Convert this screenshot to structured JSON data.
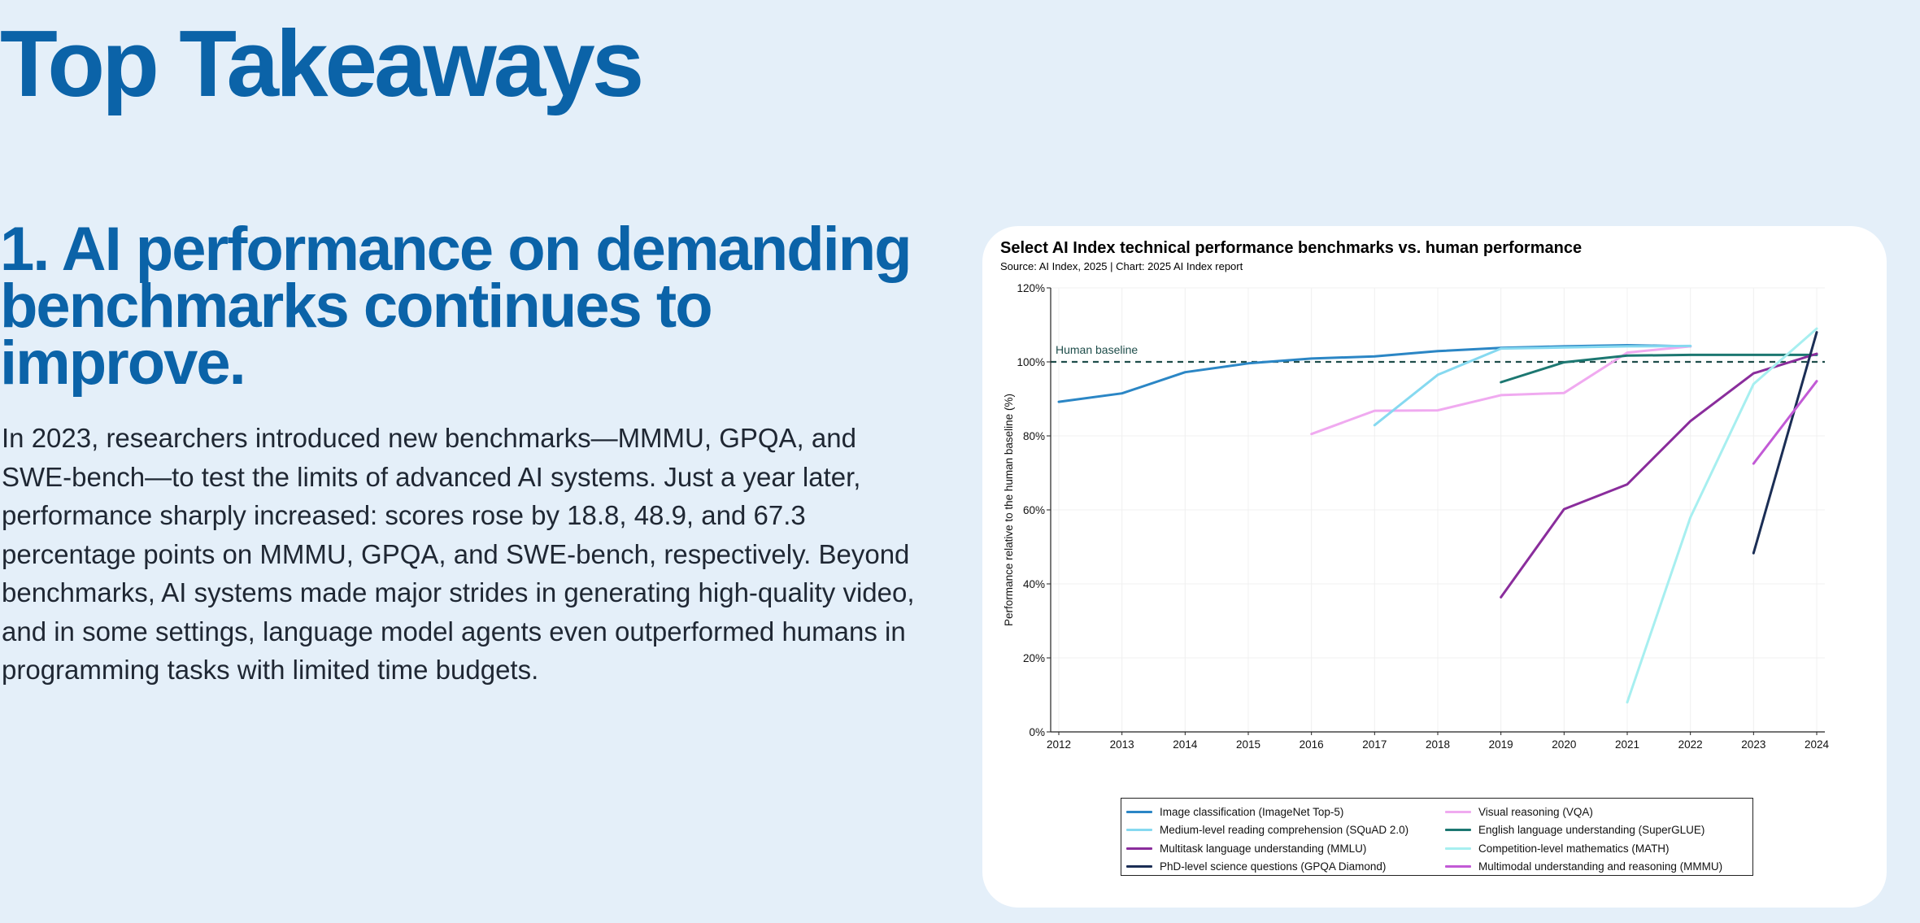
{
  "page": {
    "title": "Top Takeaways",
    "section_heading": "1. AI performance on demanding benchmarks continues to improve.",
    "section_body": "In 2023, researchers introduced new benchmarks—MMMU, GPQA, and SWE-bench—to test the limits of advanced AI systems. Just a year later, performance sharply increased: scores rose by 18.8, 48.9, and 67.3 percentage points on MMMU, GPQA, and SWE-bench, respectively. Beyond benchmarks, AI systems made major strides in generating high-quality video, and in some settings, language model agents even outperformed humans in programming tasks with limited time budgets.",
    "colors": {
      "background": "#e4eff9",
      "accent": "#0b63a8",
      "card": "#ffffff"
    }
  },
  "chart_data": {
    "type": "line",
    "title": "Select AI Index technical performance benchmarks vs. human performance",
    "subtitle": "Source: AI Index, 2025 | Chart: 2025 AI Index report",
    "xlabel": "",
    "ylabel": "Performance relative to the human baseline (%)",
    "x_ticks": [
      2012,
      2013,
      2014,
      2015,
      2016,
      2017,
      2018,
      2019,
      2020,
      2021,
      2022,
      2023,
      2024
    ],
    "y_ticks": [
      0,
      20,
      40,
      60,
      80,
      100,
      120
    ],
    "y_tick_suffix": "%",
    "xlim": [
      2012,
      2024
    ],
    "ylim": [
      0,
      120
    ],
    "grid": true,
    "legend_position": "bottom",
    "reference_line": {
      "value": 100,
      "label": "Human baseline",
      "color": "#1f4e4b"
    },
    "series": [
      {
        "name": "Image classification (ImageNet Top-5)",
        "color": "#2b86c5",
        "points": [
          [
            2012,
            89.2
          ],
          [
            2013,
            91.5
          ],
          [
            2014,
            97.2
          ],
          [
            2015,
            99.6
          ],
          [
            2016,
            100.9
          ],
          [
            2017,
            101.5
          ],
          [
            2018,
            102.9
          ],
          [
            2019,
            103.8
          ],
          [
            2020,
            104.2
          ],
          [
            2021,
            104.5
          ],
          [
            2022,
            104.2
          ]
        ]
      },
      {
        "name": "Visual reasoning (VQA)",
        "color": "#f0aaf0",
        "points": [
          [
            2016,
            80.5
          ],
          [
            2017,
            86.8
          ],
          [
            2018,
            86.9
          ],
          [
            2019,
            91.0
          ],
          [
            2020,
            91.6
          ],
          [
            2021,
            102.5
          ],
          [
            2022,
            104.2
          ]
        ]
      },
      {
        "name": "Medium-level reading comprehension (SQuAD 2.0)",
        "color": "#86d9f0",
        "points": [
          [
            2017,
            82.9
          ],
          [
            2018,
            96.5
          ],
          [
            2019,
            103.6
          ],
          [
            2020,
            103.9
          ],
          [
            2021,
            104.2
          ],
          [
            2022,
            104.3
          ]
        ]
      },
      {
        "name": "English language understanding (SuperGLUE)",
        "color": "#1c7771",
        "points": [
          [
            2019,
            94.5
          ],
          [
            2020,
            99.9
          ],
          [
            2021,
            101.7
          ],
          [
            2022,
            101.9
          ],
          [
            2023,
            101.9
          ],
          [
            2024,
            101.9
          ]
        ]
      },
      {
        "name": "Multitask language understanding (MMLU)",
        "color": "#8a2d9c",
        "points": [
          [
            2019,
            36.4
          ],
          [
            2020,
            60.2
          ],
          [
            2021,
            66.9
          ],
          [
            2022,
            84.0
          ],
          [
            2023,
            96.9
          ],
          [
            2024,
            102.2
          ]
        ]
      },
      {
        "name": "Competition-level mathematics (MATH)",
        "color": "#a7eff0",
        "points": [
          [
            2021,
            8.0
          ],
          [
            2022,
            58.0
          ],
          [
            2023,
            94.0
          ],
          [
            2024,
            109.0
          ]
        ]
      },
      {
        "name": "PhD-level science questions (GPQA Diamond)",
        "color": "#1b2e55",
        "points": [
          [
            2023,
            48.3
          ],
          [
            2024,
            108.0
          ]
        ]
      },
      {
        "name": "Multimodal understanding and reasoning (MMMU)",
        "color": "#c25ad6",
        "points": [
          [
            2023,
            72.5
          ],
          [
            2024,
            94.8
          ]
        ]
      }
    ]
  }
}
